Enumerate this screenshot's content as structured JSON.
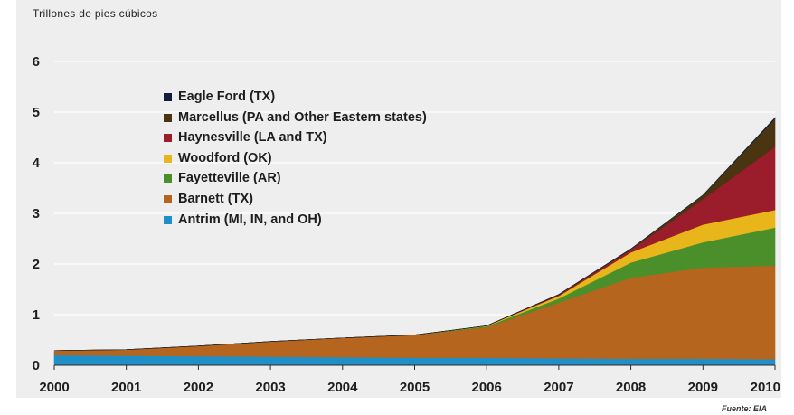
{
  "chart_data": {
    "type": "area",
    "stacked": true,
    "y_unit_label": "Trillones de pies cúbicos",
    "x": [
      2000,
      2001,
      2002,
      2003,
      2004,
      2005,
      2006,
      2007,
      2008,
      2009,
      2010
    ],
    "ylim": [
      0,
      6
    ],
    "yticks": [
      0,
      1,
      2,
      3,
      4,
      5,
      6
    ],
    "grid": true,
    "legend_position": "top-left",
    "series": [
      {
        "name": "Antrim (MI, IN, and OH)",
        "color": "#1f8fc8",
        "values": [
          0.2,
          0.19,
          0.18,
          0.17,
          0.16,
          0.15,
          0.15,
          0.14,
          0.13,
          0.13,
          0.12
        ]
      },
      {
        "name": "Barnett (TX)",
        "color": "#b5651d",
        "values": [
          0.09,
          0.12,
          0.2,
          0.3,
          0.38,
          0.45,
          0.6,
          1.1,
          1.6,
          1.8,
          1.85
        ]
      },
      {
        "name": "Fayetteville (AR)",
        "color": "#4a8f2a",
        "values": [
          0,
          0,
          0,
          0,
          0,
          0,
          0.02,
          0.08,
          0.3,
          0.5,
          0.75
        ]
      },
      {
        "name": "Woodford (OK)",
        "color": "#e8b51a",
        "values": [
          0,
          0,
          0,
          0,
          0,
          0,
          0.01,
          0.05,
          0.2,
          0.35,
          0.35
        ]
      },
      {
        "name": "Haynesville (LA and TX)",
        "color": "#9b1c2a",
        "values": [
          0,
          0,
          0,
          0,
          0,
          0,
          0,
          0.02,
          0.05,
          0.5,
          1.25
        ]
      },
      {
        "name": "Marcellus (PA and Other Eastern states)",
        "color": "#4a3510",
        "values": [
          0,
          0,
          0,
          0,
          0,
          0,
          0,
          0.01,
          0.02,
          0.08,
          0.55
        ]
      },
      {
        "name": "Eagle Ford (TX)",
        "color": "#0f1e3c",
        "values": [
          0,
          0,
          0,
          0,
          0,
          0,
          0,
          0,
          0,
          0,
          0.02
        ]
      }
    ]
  },
  "legend_order": [
    6,
    5,
    4,
    3,
    2,
    1,
    0
  ],
  "source_note": "Fuente: EIA"
}
